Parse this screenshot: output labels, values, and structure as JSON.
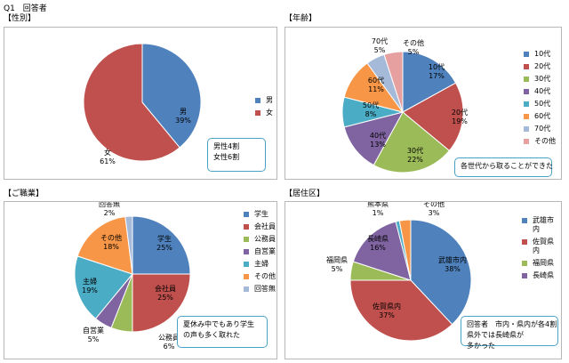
{
  "header": {
    "question": "Q1　回答者"
  },
  "chart_data": [
    {
      "type": "pie",
      "title": "【性別】",
      "categories": [
        "男",
        "女"
      ],
      "values": [
        39,
        61
      ],
      "slice_labels": [
        "男\n39%",
        "女\n61%"
      ],
      "legend": [
        "男",
        "女"
      ],
      "legend_position": "right",
      "colors": [
        "#4f81bd",
        "#c0504d"
      ],
      "note": [
        "男性4割",
        "女性6割"
      ]
    },
    {
      "type": "pie",
      "title": "【年齢】",
      "categories": [
        "10代",
        "20代",
        "30代",
        "40代",
        "50代",
        "60代",
        "70代",
        "その他"
      ],
      "values": [
        17,
        19,
        22,
        13,
        8,
        11,
        5,
        5
      ],
      "slice_labels": [
        "10代\n17%",
        "20代\n19%",
        "30代\n22%",
        "40代\n13%",
        "50代\n8%",
        "60代\n11%",
        "70代\n5%",
        "その他\n5%"
      ],
      "legend": [
        "10代",
        "20代",
        "30代",
        "40代",
        "50代",
        "60代",
        "70代",
        "その他"
      ],
      "legend_position": "right",
      "colors": [
        "#4f81bd",
        "#c0504d",
        "#9bbb59",
        "#8064a2",
        "#4bacc6",
        "#f79646",
        "#a5b9d8",
        "#e6a0a0"
      ],
      "note": [
        "各世代から取ることができた"
      ]
    },
    {
      "type": "pie",
      "title": "【ご職業】",
      "categories": [
        "学生",
        "会社員",
        "公務員",
        "自営業",
        "主婦",
        "その他",
        "回答無"
      ],
      "values": [
        25,
        25,
        6,
        5,
        19,
        18,
        2
      ],
      "slice_labels": [
        "学生\n25%",
        "会社員\n25%",
        "公務員\n6%",
        "自営業\n5%",
        "主婦\n19%",
        "その他\n18%",
        "回答無\n2%"
      ],
      "legend": [
        "学生",
        "会社員",
        "公務員",
        "自営業",
        "主婦",
        "その他",
        "回答無"
      ],
      "legend_position": "right",
      "colors": [
        "#4f81bd",
        "#c0504d",
        "#9bbb59",
        "#8064a2",
        "#4bacc6",
        "#f79646",
        "#a5b9d8"
      ],
      "note": [
        "夏休み中でもあり学生",
        "の声も多く取れた"
      ]
    },
    {
      "type": "pie",
      "title": "【居住区】",
      "categories": [
        "武雄市内",
        "佐賀県内",
        "福岡県",
        "長崎県",
        "熊本県",
        "その他"
      ],
      "values": [
        38,
        37,
        5,
        16,
        1,
        3
      ],
      "slice_labels": [
        "武雄市内\n38%",
        "佐賀県内\n37%",
        "福岡県\n5%",
        "長崎県\n16%",
        "熊本県\n1%",
        "その他\n3%"
      ],
      "legend": [
        "武雄市\n内",
        "佐賀県\n内",
        "福岡県",
        "長崎県"
      ],
      "legend_position": "right",
      "colors": [
        "#4f81bd",
        "#c0504d",
        "#9bbb59",
        "#8064a2",
        "#4bacc6",
        "#f79646"
      ],
      "note": [
        "回答者　市内・県内が各4割",
        "県外では長崎県が",
        "多かった"
      ]
    }
  ]
}
